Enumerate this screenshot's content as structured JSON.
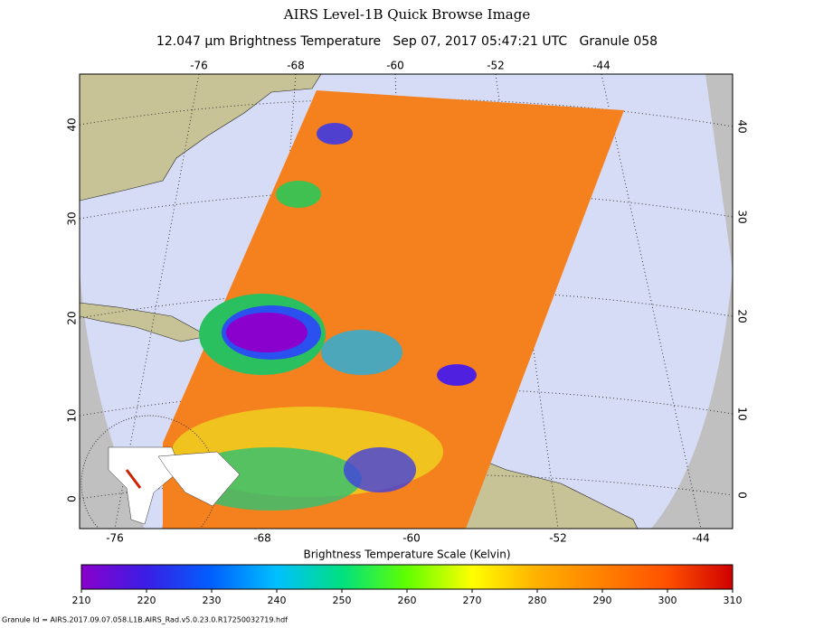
{
  "header": {
    "title": "AIRS Level-1B Quick Browse Image",
    "subtitle": "12.047 μm Brightness Temperature   Sep 07, 2017 05:47:21 UTC   Granule 058"
  },
  "map": {
    "top_lon_labels": [
      -76,
      -68,
      -60,
      -52,
      -44
    ],
    "bottom_lon_labels": [
      -76,
      -68,
      -60,
      -52,
      -44
    ],
    "left_lat_labels": [
      0,
      10,
      20,
      30,
      40
    ],
    "right_lat_labels": [
      0,
      10,
      20,
      30,
      40
    ]
  },
  "colorbar": {
    "title": "Brightness Temperature Scale (Kelvin)",
    "lim": [
      210,
      310
    ],
    "ticks": [
      210,
      220,
      230,
      240,
      250,
      260,
      270,
      280,
      290,
      300,
      310
    ],
    "colors": [
      "#8a00cc",
      "#3a1ee6",
      "#0060ff",
      "#00c0ff",
      "#00e080",
      "#60ff00",
      "#ffff00",
      "#ffb000",
      "#ff8000",
      "#ff5000",
      "#d00000"
    ]
  },
  "footer": {
    "granule_id": "Granule Id = AIRS.2017.09.07.058.L1B.AIRS_Rad.v5.0.23.0.R17250032719.hdf"
  }
}
